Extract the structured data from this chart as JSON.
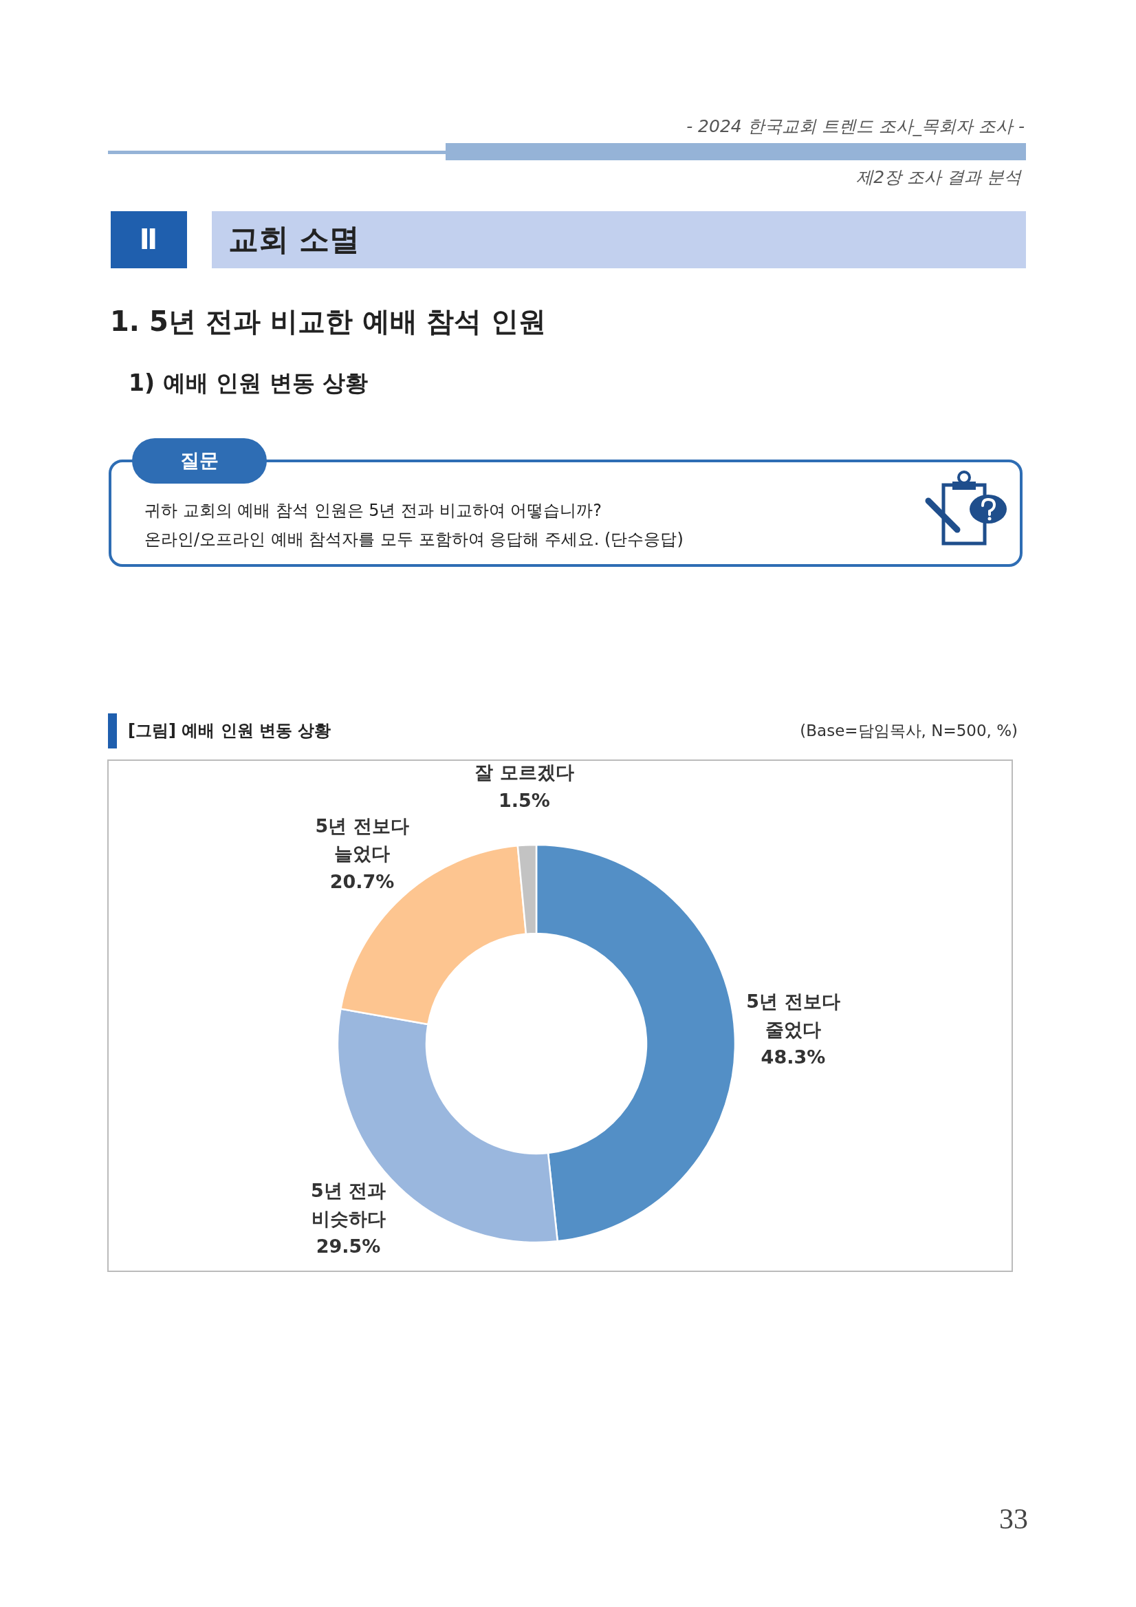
{
  "chart_data": {
    "type": "donut",
    "title": "[그림] 예배 인원 변동 상황",
    "categories": [
      "5년 전보다 줄었다",
      "5년 전과 비슷하다",
      "5년 전보다 늘었다",
      "잘 모르겠다"
    ],
    "values": [
      48.3,
      29.5,
      20.7,
      1.5
    ],
    "colors": [
      "#538fc6",
      "#9ab7de",
      "#fdc590",
      "#c3c3c3"
    ],
    "value_labels": [
      "48.3%",
      "29.5%",
      "20.7%",
      "1.5%"
    ],
    "annotations": [
      "(Base=담임목사, N=500, %)",
      "- 2024 한국교회 트렌드 조사_목회자 조사 -",
      "제2장 조사 결과 분석",
      "Ⅱ",
      "교회 소멸",
      "1. 5년 전과 비교한 예배 참석 인원",
      "1) 예배 인원 변동 상황",
      "질문",
      "귀하 교회의 예배 참석 인원은 5년 전과 비교하여 어떻습니까?",
      "온라인/오프라인 예배 참석자를 모두 포함하여 응답해 주세요. (단수응답)",
      "33"
    ]
  }
}
